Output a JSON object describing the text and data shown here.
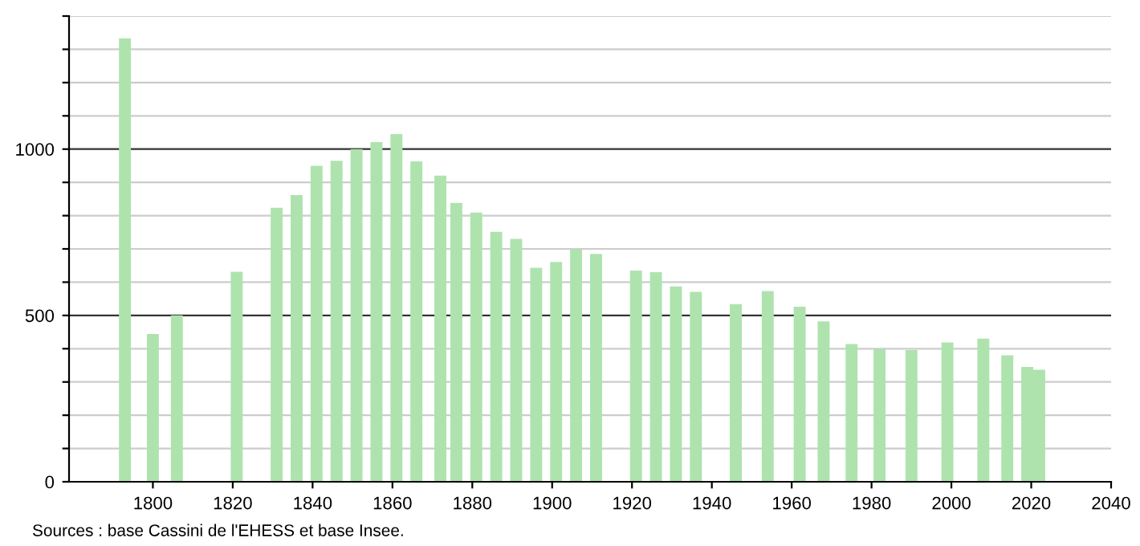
{
  "chart_data": {
    "type": "bar",
    "x": [
      1793,
      1800,
      1806,
      1821,
      1831,
      1836,
      1841,
      1846,
      1851,
      1856,
      1861,
      1866,
      1872,
      1876,
      1881,
      1886,
      1891,
      1896,
      1901,
      1906,
      1911,
      1921,
      1926,
      1931,
      1936,
      1946,
      1954,
      1962,
      1968,
      1975,
      1982,
      1990,
      1999,
      2008,
      2014,
      2019,
      2022
    ],
    "values": [
      1333,
      444,
      500,
      631,
      824,
      862,
      950,
      965,
      1000,
      1021,
      1045,
      963,
      920,
      838,
      809,
      751,
      730,
      643,
      661,
      699,
      685,
      635,
      630,
      587,
      571,
      534,
      573,
      526,
      482,
      414,
      398,
      396,
      419,
      430,
      380,
      345,
      337
    ],
    "color": "#aee3ae",
    "xlim": [
      1779,
      2040
    ],
    "xticks": [
      1800,
      1820,
      1840,
      1860,
      1880,
      1900,
      1920,
      1940,
      1960,
      1980,
      2000,
      2020,
      2040
    ],
    "ylim": [
      0,
      1400
    ],
    "yticks": [
      0,
      {
        "value": 100,
        "label": null
      },
      {
        "value": 200,
        "label": null
      },
      {
        "value": 300,
        "label": null
      },
      {
        "value": 400,
        "label": null
      },
      500,
      {
        "value": 600,
        "label": null
      },
      {
        "value": 700,
        "label": null
      },
      {
        "value": 800,
        "label": null
      },
      {
        "value": 900,
        "label": null
      },
      1000,
      {
        "value": 1100,
        "label": null
      },
      {
        "value": 1200,
        "label": null
      },
      {
        "value": 1300,
        "label": null
      },
      {
        "value": 1400,
        "label": null
      }
    ],
    "grid": "y",
    "annotations": [
      "Sources : base Cassini de l'EHESS et base Insee."
    ]
  }
}
